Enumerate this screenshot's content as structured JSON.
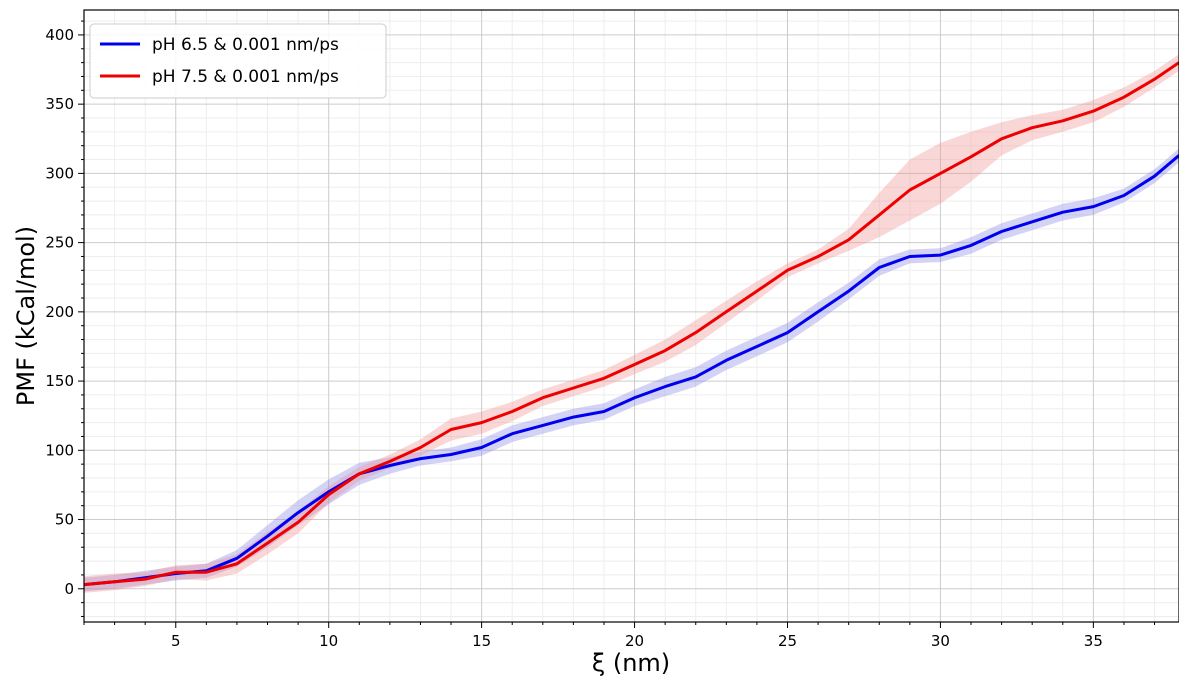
{
  "chart_data": {
    "type": "line",
    "title": "",
    "xlabel": "ξ (nm)",
    "ylabel": "PMF (kCal/mol)",
    "xlim": [
      2,
      37.8
    ],
    "ylim": [
      -24,
      418
    ],
    "x_ticks": [
      5,
      10,
      15,
      20,
      25,
      30,
      35
    ],
    "y_ticks": [
      0,
      50,
      100,
      150,
      200,
      250,
      300,
      350,
      400
    ],
    "grid": true,
    "minor_grid": true,
    "legend_position": "top-left",
    "series": [
      {
        "name": "pH 6.5 & 0.001 nm/ps",
        "color": "#0000ee",
        "band_color": "#8080e6",
        "x": [
          2,
          3,
          4,
          5,
          6,
          7,
          8,
          9,
          10,
          11,
          12,
          13,
          14,
          15,
          16,
          17,
          18,
          19,
          20,
          21,
          22,
          23,
          24,
          25,
          26,
          27,
          28,
          29,
          30,
          31,
          32,
          33,
          34,
          35,
          36,
          37,
          37.8
        ],
        "values": [
          3,
          5,
          8,
          11,
          13,
          22,
          38,
          55,
          70,
          83,
          89,
          94,
          97,
          102,
          112,
          118,
          124,
          128,
          138,
          146,
          153,
          165,
          175,
          185,
          200,
          215,
          232,
          240,
          241,
          248,
          258,
          265,
          272,
          276,
          284,
          298,
          313
        ],
        "band": [
          5,
          5,
          5,
          5,
          5,
          6,
          8,
          9,
          9,
          8,
          6,
          5,
          5,
          6,
          6,
          6,
          6,
          6,
          6,
          7,
          7,
          7,
          7,
          7,
          7,
          6,
          6,
          5,
          5,
          6,
          6,
          6,
          6,
          6,
          5,
          5,
          5
        ]
      },
      {
        "name": "pH 7.5 & 0.001 nm/ps",
        "color": "#ee0000",
        "band_color": "#f28c8c",
        "x": [
          2,
          3,
          4,
          5,
          6,
          7,
          8,
          9,
          10,
          11,
          12,
          13,
          14,
          15,
          16,
          17,
          18,
          19,
          20,
          21,
          22,
          23,
          24,
          25,
          26,
          27,
          28,
          29,
          30,
          31,
          32,
          33,
          34,
          35,
          36,
          37,
          37.8
        ],
        "values": [
          3,
          5,
          7,
          12,
          12,
          18,
          33,
          48,
          68,
          83,
          92,
          102,
          115,
          120,
          128,
          138,
          145,
          152,
          162,
          172,
          185,
          200,
          215,
          230,
          240,
          252,
          270,
          288,
          300,
          312,
          325,
          333,
          338,
          345,
          355,
          368,
          380
        ],
        "band": [
          6,
          6,
          5,
          5,
          6,
          7,
          8,
          8,
          6,
          5,
          5,
          6,
          8,
          8,
          7,
          6,
          6,
          6,
          7,
          8,
          9,
          8,
          7,
          5,
          5,
          8,
          16,
          22,
          22,
          18,
          12,
          9,
          8,
          8,
          7,
          6,
          6
        ]
      }
    ]
  }
}
